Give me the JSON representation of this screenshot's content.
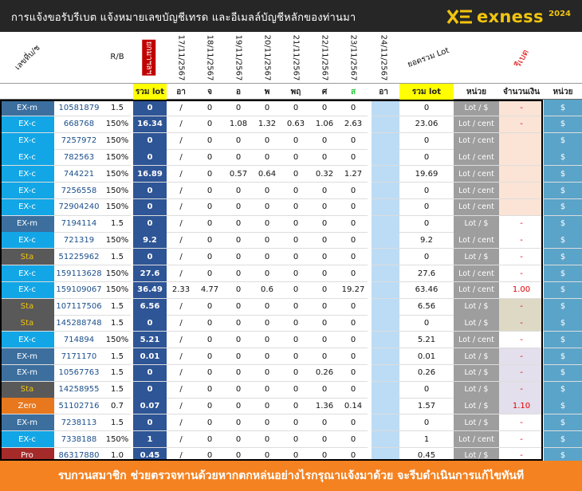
{
  "header": {
    "title": "การแจ้งขอรับรีเบต  แจ้งหมายเลขบัญชีเทรด และอีเมลล์บัญชีหลักของท่านมา",
    "brand": "exness",
    "year": "2024"
  },
  "columns": {
    "account": "เลขที่บ/ช",
    "rb": "R/B",
    "carried": "ยกมาฯลฯ",
    "dates": [
      "17/11/2567",
      "18/11/2567",
      "19/11/2567",
      "20/11/2567",
      "21/11/2567",
      "22/11/2567",
      "23/11/2567",
      "24/11/2567"
    ],
    "sum_lot": "ยอดรวม Lot",
    "rebate": "รีเบต"
  },
  "subheader": {
    "total_lot": "รวม lot",
    "days": [
      "อา",
      "จ",
      "อ",
      "พ",
      "พฤ",
      "ศ",
      "ส",
      "อา"
    ],
    "sum_lot": "รวม lot",
    "unit": "หน่วย",
    "amount": "จำนวนเงิน",
    "currency": "หน่วย"
  },
  "colors": {
    "EX-m": "#3c6f9e",
    "EX-c": "#12a6e6",
    "Sta": "#595959",
    "Zero": "#e8781e",
    "Pro": "#a52a2a",
    "accent": "#f1c40f",
    "footer": "#f58220"
  },
  "rows": [
    {
      "type": "EX-m",
      "acc": "10581879",
      "rb": "1.5",
      "tot": "0",
      "slash": "/",
      "d": [
        "0",
        "0",
        "0",
        "0",
        "0",
        "0"
      ],
      "sum": "0",
      "unit": "Lot / $",
      "amt": "-",
      "cur": "$",
      "amtbg": "#fbe4d5"
    },
    {
      "type": "EX-c",
      "acc": "668768",
      "rb": "150%",
      "tot": "16.34",
      "slash": "/",
      "d": [
        "0",
        "1.08",
        "1.32",
        "0.63",
        "1.06",
        "2.63"
      ],
      "sum": "23.06",
      "unit": "Lot / cent",
      "amt": "-",
      "cur": "$",
      "amtbg": "#fbe4d5"
    },
    {
      "type": "EX-c",
      "acc": "7257972",
      "rb": "150%",
      "tot": "0",
      "slash": "/",
      "d": [
        "0",
        "0",
        "0",
        "0",
        "0",
        "0"
      ],
      "sum": "0",
      "unit": "Lot / cent",
      "amt": "",
      "cur": "$",
      "amtbg": "#fbe4d5"
    },
    {
      "type": "EX-c",
      "acc": "782563",
      "rb": "150%",
      "tot": "0",
      "slash": "/",
      "d": [
        "0",
        "0",
        "0",
        "0",
        "0",
        "0"
      ],
      "sum": "0",
      "unit": "Lot / cent",
      "amt": "",
      "cur": "$",
      "amtbg": "#fbe4d5"
    },
    {
      "type": "EX-c",
      "acc": "744221",
      "rb": "150%",
      "tot": "16.89",
      "slash": "/",
      "d": [
        "0",
        "0.57",
        "0.64",
        "0",
        "0.32",
        "1.27"
      ],
      "sum": "19.69",
      "unit": "Lot / cent",
      "amt": "",
      "cur": "$",
      "amtbg": "#fbe4d5"
    },
    {
      "type": "EX-c",
      "acc": "7256558",
      "rb": "150%",
      "tot": "0",
      "slash": "/",
      "d": [
        "0",
        "0",
        "0",
        "0",
        "0",
        "0"
      ],
      "sum": "0",
      "unit": "Lot / cent",
      "amt": "",
      "cur": "$",
      "amtbg": "#fbe4d5"
    },
    {
      "type": "EX-c",
      "acc": "72904240",
      "rb": "150%",
      "tot": "0",
      "slash": "/",
      "d": [
        "0",
        "0",
        "0",
        "0",
        "0",
        "0"
      ],
      "sum": "0",
      "unit": "Lot / cent",
      "amt": "",
      "cur": "$",
      "amtbg": "#fbe4d5"
    },
    {
      "type": "EX-m",
      "acc": "7194114",
      "rb": "1.5",
      "tot": "0",
      "slash": "/",
      "d": [
        "0",
        "0",
        "0",
        "0",
        "0",
        "0"
      ],
      "sum": "0",
      "unit": "Lot / $",
      "amt": "-",
      "cur": "$",
      "amtbg": "#ffffff"
    },
    {
      "type": "EX-c",
      "acc": "721319",
      "rb": "150%",
      "tot": "9.2",
      "slash": "/",
      "d": [
        "0",
        "0",
        "0",
        "0",
        "0",
        "0"
      ],
      "sum": "9.2",
      "unit": "Lot / cent",
      "amt": "-",
      "cur": "$",
      "amtbg": "#ffffff"
    },
    {
      "type": "Sta",
      "acc": "51225962",
      "rb": "1.5",
      "tot": "0",
      "slash": "/",
      "d": [
        "0",
        "0",
        "0",
        "0",
        "0",
        "0"
      ],
      "sum": "0",
      "unit": "Lot / $",
      "amt": "-",
      "cur": "$",
      "amtbg": "#ffffff"
    },
    {
      "type": "EX-c",
      "acc": "159113628",
      "rb": "150%",
      "tot": "27.6",
      "slash": "/",
      "d": [
        "0",
        "0",
        "0",
        "0",
        "0",
        "0"
      ],
      "sum": "27.6",
      "unit": "Lot / cent",
      "amt": "-",
      "cur": "$",
      "amtbg": "#ffffff"
    },
    {
      "type": "EX-c",
      "acc": "159109067",
      "rb": "150%",
      "tot": "36.49",
      "slash": "2.33",
      "d": [
        "4.77",
        "0",
        "0.6",
        "0",
        "0",
        "19.27"
      ],
      "sum": "63.46",
      "unit": "Lot / cent",
      "amt": "1.00",
      "cur": "$",
      "amtbg": "#ffffff"
    },
    {
      "type": "Sta",
      "acc": "107117506",
      "rb": "1.5",
      "tot": "6.56",
      "slash": "/",
      "d": [
        "0",
        "0",
        "0",
        "0",
        "0",
        "0"
      ],
      "sum": "6.56",
      "unit": "Lot / $",
      "amt": "-",
      "cur": "$",
      "amtbg": "#ddd9c4"
    },
    {
      "type": "Sta",
      "acc": "145288748",
      "rb": "1.5",
      "tot": "0",
      "slash": "/",
      "d": [
        "0",
        "0",
        "0",
        "0",
        "0",
        "0"
      ],
      "sum": "0",
      "unit": "Lot / $",
      "amt": "-",
      "cur": "$",
      "amtbg": "#ddd9c4"
    },
    {
      "type": "EX-c",
      "acc": "714894",
      "rb": "150%",
      "tot": "5.21",
      "slash": "/",
      "d": [
        "0",
        "0",
        "0",
        "0",
        "0",
        "0"
      ],
      "sum": "5.21",
      "unit": "Lot / cent",
      "amt": "-",
      "cur": "$",
      "amtbg": "#ffffff"
    },
    {
      "type": "EX-m",
      "acc": "7171170",
      "rb": "1.5",
      "tot": "0.01",
      "slash": "/",
      "d": [
        "0",
        "0",
        "0",
        "0",
        "0",
        "0"
      ],
      "sum": "0.01",
      "unit": "Lot / $",
      "amt": "-",
      "cur": "$",
      "amtbg": "#e4dfec"
    },
    {
      "type": "EX-m",
      "acc": "10567763",
      "rb": "1.5",
      "tot": "0",
      "slash": "/",
      "d": [
        "0",
        "0",
        "0",
        "0",
        "0.26",
        "0"
      ],
      "sum": "0.26",
      "unit": "Lot / $",
      "amt": "-",
      "cur": "$",
      "amtbg": "#e4dfec"
    },
    {
      "type": "Sta",
      "acc": "14258955",
      "rb": "1.5",
      "tot": "0",
      "slash": "/",
      "d": [
        "0",
        "0",
        "0",
        "0",
        "0",
        "0"
      ],
      "sum": "0",
      "unit": "Lot / $",
      "amt": "-",
      "cur": "$",
      "amtbg": "#e4dfec"
    },
    {
      "type": "Zero",
      "acc": "51102716",
      "rb": "0.7",
      "tot": "0.07",
      "slash": "/",
      "d": [
        "0",
        "0",
        "0",
        "0",
        "1.36",
        "0.14"
      ],
      "sum": "1.57",
      "unit": "Lot / $",
      "amt": "1.10",
      "cur": "$",
      "amtbg": "#e4dfec"
    },
    {
      "type": "EX-m",
      "acc": "7238113",
      "rb": "1.5",
      "tot": "0",
      "slash": "/",
      "d": [
        "0",
        "0",
        "0",
        "0",
        "0",
        "0"
      ],
      "sum": "0",
      "unit": "Lot / $",
      "amt": "-",
      "cur": "$",
      "amtbg": "#ffffff"
    },
    {
      "type": "EX-c",
      "acc": "7338188",
      "rb": "150%",
      "tot": "1",
      "slash": "/",
      "d": [
        "0",
        "0",
        "0",
        "0",
        "0",
        "0"
      ],
      "sum": "1",
      "unit": "Lot / cent",
      "amt": "-",
      "cur": "$",
      "amtbg": "#ffffff"
    },
    {
      "type": "Pro",
      "acc": "86317880",
      "rb": "1.0",
      "tot": "0.45",
      "slash": "/",
      "d": [
        "0",
        "0",
        "0",
        "0",
        "0",
        "0"
      ],
      "sum": "0.45",
      "unit": "Lot / $",
      "amt": "-",
      "cur": "$",
      "amtbg": "#ffffff"
    }
  ],
  "footer": {
    "text": "รบกวนสมาชิก ช่วยตรวจทานด้วยหากตกหล่นอย่างไรกรุณาแจ้งมาด้วย จะรีบดำเนินการแก้ไขทันที"
  }
}
